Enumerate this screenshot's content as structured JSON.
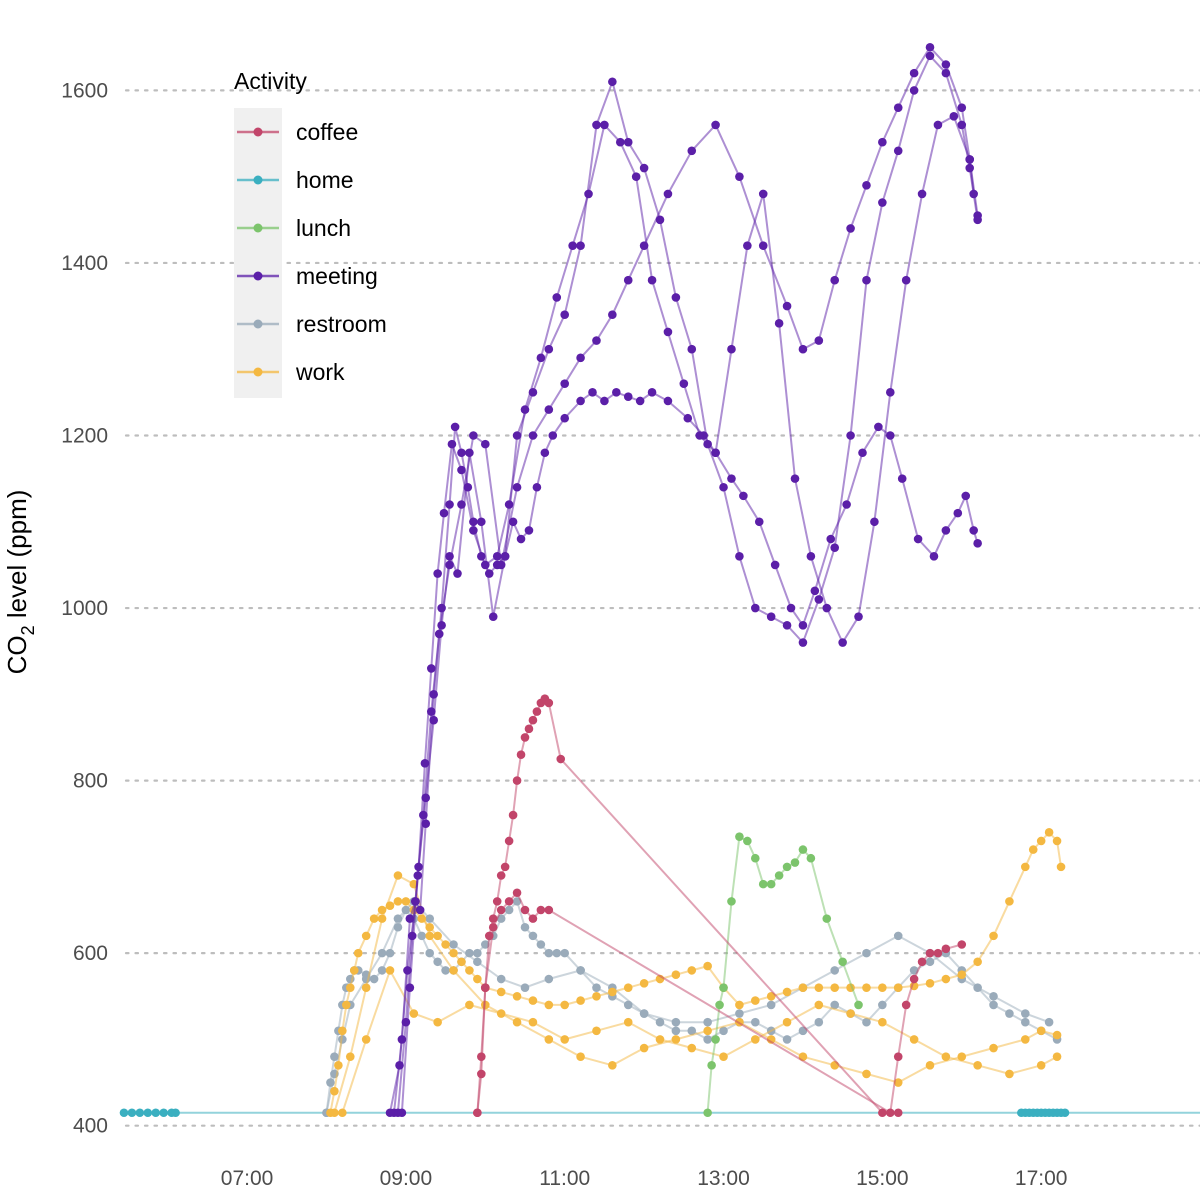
{
  "chart_data": {
    "type": "line",
    "title": "",
    "xlabel": "",
    "ylabel_main": "CO",
    "ylabel_sub": "2",
    "ylabel_rest": " level (ppm)",
    "ylim": [
      395,
      1670
    ],
    "xlim": [
      5.4,
      19.0
    ],
    "y_ticks": [
      400,
      600,
      800,
      1000,
      1200,
      1400,
      1600
    ],
    "x_ticks": [
      {
        "hour": 7,
        "label": "07:00"
      },
      {
        "hour": 9,
        "label": "09:00"
      },
      {
        "hour": 11,
        "label": "11:00"
      },
      {
        "hour": 13,
        "label": "13:00"
      },
      {
        "hour": 15,
        "label": "15:00"
      },
      {
        "hour": 17,
        "label": "17:00"
      }
    ],
    "grid": "horizontal-dotted",
    "legend": {
      "title": "Activity",
      "placement": "top-left",
      "entries": [
        "coffee",
        "home",
        "lunch",
        "meeting",
        "restroom",
        "work"
      ]
    },
    "colors": {
      "coffee": "#c2456a",
      "home": "#3aafc0",
      "lunch": "#7cc46c",
      "meeting": "#5b1fa8",
      "restroom": "#9aabba",
      "work": "#f4b841"
    },
    "series": [
      {
        "name": "home",
        "color": "#3aafc0",
        "x": [
          5.45,
          5.55,
          5.65,
          5.75,
          5.85,
          5.95,
          6.05,
          6.1,
          16.75,
          16.8,
          16.85,
          16.9,
          16.95,
          17.0,
          17.05,
          17.1,
          17.15,
          17.2,
          17.25,
          17.3,
          19.0
        ],
        "y": [
          415,
          415,
          415,
          415,
          415,
          415,
          415,
          415,
          415,
          415,
          415,
          415,
          415,
          415,
          415,
          415,
          415,
          415,
          415,
          415,
          415
        ]
      },
      {
        "name": "meeting",
        "color": "#5b1fa8",
        "x": [
          8.85,
          8.95,
          9.05,
          9.12,
          9.18,
          9.25,
          9.35,
          9.45,
          9.55,
          9.62,
          9.7,
          9.78,
          9.85,
          9.95,
          10.05,
          10.15,
          10.25,
          10.35,
          10.45,
          10.55,
          10.65,
          10.75,
          10.85,
          11.0,
          11.2,
          11.35,
          11.5,
          11.65,
          11.8,
          11.95,
          12.1,
          12.3,
          12.55,
          12.75,
          12.9,
          13.1,
          13.25,
          13.45,
          13.65,
          13.85,
          14.0,
          14.15,
          14.35,
          14.55,
          14.75,
          14.95,
          15.1,
          15.25,
          15.45,
          15.65,
          15.8,
          15.95,
          16.05,
          16.15,
          16.2
        ],
        "y": [
          415,
          500,
          640,
          660,
          650,
          750,
          900,
          1000,
          1120,
          1210,
          1180,
          1140,
          1100,
          1060,
          1040,
          1050,
          1060,
          1100,
          1080,
          1090,
          1140,
          1180,
          1200,
          1220,
          1240,
          1250,
          1240,
          1250,
          1245,
          1240,
          1250,
          1240,
          1220,
          1200,
          1180,
          1150,
          1130,
          1100,
          1050,
          1000,
          980,
          1020,
          1080,
          1120,
          1180,
          1210,
          1200,
          1150,
          1080,
          1060,
          1090,
          1110,
          1130,
          1090,
          1075
        ]
      },
      {
        "name": "meeting",
        "color": "#5b1fa8",
        "x": [
          8.9,
          9.0,
          9.08,
          9.16,
          9.24,
          9.32,
          9.4,
          9.48,
          9.58,
          9.7,
          9.85,
          10.0,
          10.15,
          10.3,
          10.5,
          10.7,
          10.9,
          11.1,
          11.3,
          11.5,
          11.7,
          11.9,
          12.1,
          12.3,
          12.5,
          12.7,
          12.9,
          13.1,
          13.3,
          13.5,
          13.7,
          13.9,
          14.1,
          14.3,
          14.5,
          14.7,
          14.9,
          15.1,
          15.3,
          15.5,
          15.7,
          15.9,
          16.1,
          16.2
        ],
        "y": [
          415,
          520,
          620,
          700,
          820,
          930,
          1040,
          1110,
          1190,
          1160,
          1090,
          1050,
          1060,
          1120,
          1230,
          1290,
          1360,
          1420,
          1480,
          1560,
          1540,
          1500,
          1380,
          1320,
          1260,
          1200,
          1180,
          1300,
          1420,
          1480,
          1330,
          1150,
          1060,
          1000,
          960,
          990,
          1100,
          1250,
          1380,
          1480,
          1560,
          1570,
          1520,
          1455
        ]
      },
      {
        "name": "meeting",
        "color": "#5b1fa8",
        "x": [
          8.95,
          9.05,
          9.15,
          9.25,
          9.35,
          9.45,
          9.55,
          9.65,
          9.8,
          9.95,
          10.1,
          10.25,
          10.4,
          10.6,
          10.8,
          11.0,
          11.2,
          11.4,
          11.6,
          11.8,
          12.0,
          12.2,
          12.4,
          12.6,
          12.8,
          13.0,
          13.2,
          13.4,
          13.6,
          13.8,
          14.0,
          14.2,
          14.4,
          14.6,
          14.8,
          15.0,
          15.2,
          15.4,
          15.6,
          15.8,
          16.0,
          16.1,
          16.2
        ],
        "y": [
          415,
          560,
          690,
          780,
          870,
          980,
          1060,
          1040,
          1180,
          1100,
          990,
          1060,
          1200,
          1250,
          1300,
          1340,
          1420,
          1560,
          1610,
          1540,
          1510,
          1450,
          1360,
          1300,
          1190,
          1140,
          1060,
          1000,
          990,
          980,
          960,
          1010,
          1070,
          1200,
          1380,
          1470,
          1530,
          1600,
          1640,
          1620,
          1560,
          1510,
          1450
        ]
      },
      {
        "name": "meeting",
        "color": "#5b1fa8",
        "x": [
          8.8,
          8.92,
          9.02,
          9.12,
          9.22,
          9.32,
          9.42,
          9.55,
          9.7,
          9.85,
          10.0,
          10.2,
          10.4,
          10.6,
          10.8,
          11.0,
          11.2,
          11.4,
          11.6,
          11.8,
          12.0,
          12.3,
          12.6,
          12.9,
          13.2,
          13.5,
          13.8,
          14.0,
          14.2,
          14.4,
          14.6,
          14.8,
          15.0,
          15.2,
          15.4,
          15.6,
          15.8,
          16.0,
          16.1,
          16.15
        ],
        "y": [
          415,
          470,
          580,
          660,
          760,
          880,
          970,
          1050,
          1120,
          1200,
          1190,
          1050,
          1140,
          1200,
          1230,
          1260,
          1290,
          1310,
          1340,
          1380,
          1420,
          1480,
          1530,
          1560,
          1500,
          1420,
          1350,
          1300,
          1310,
          1380,
          1440,
          1490,
          1540,
          1580,
          1620,
          1650,
          1630,
          1580,
          1520,
          1480
        ]
      },
      {
        "name": "coffee",
        "color": "#c2456a",
        "x": [
          9.9,
          9.95,
          10.0,
          10.05,
          10.1,
          10.15,
          10.2,
          10.25,
          10.3,
          10.35,
          10.4,
          10.45,
          10.5,
          10.55,
          10.6,
          10.65,
          10.7,
          10.75,
          10.8,
          10.95,
          15.0,
          15.2
        ],
        "y": [
          415,
          460,
          560,
          620,
          640,
          660,
          690,
          700,
          730,
          760,
          800,
          830,
          850,
          860,
          870,
          880,
          890,
          895,
          890,
          825,
          415,
          415
        ]
      },
      {
        "name": "coffee",
        "color": "#c2456a",
        "x": [
          9.9,
          9.95,
          10.0,
          10.1,
          10.2,
          10.3,
          10.4,
          10.5,
          10.6,
          10.7,
          10.8,
          15.1,
          15.2,
          15.3,
          15.4,
          15.5,
          15.6,
          15.7,
          15.8,
          16.0
        ],
        "y": [
          415,
          480,
          560,
          630,
          650,
          660,
          670,
          650,
          640,
          650,
          650,
          415,
          480,
          540,
          570,
          590,
          600,
          600,
          605,
          610
        ]
      },
      {
        "name": "lunch",
        "color": "#7cc46c",
        "x": [
          12.8,
          12.85,
          12.9,
          12.95,
          13.0,
          13.1,
          13.2,
          13.3,
          13.4,
          13.5,
          13.6,
          13.7,
          13.8,
          13.9,
          14.0,
          14.1,
          14.3,
          14.5,
          14.7
        ],
        "y": [
          415,
          470,
          500,
          540,
          560,
          660,
          735,
          730,
          710,
          680,
          680,
          690,
          700,
          705,
          720,
          710,
          640,
          590,
          540
        ]
      },
      {
        "name": "restroom",
        "color": "#9aabba",
        "x": [
          8.0,
          8.05,
          8.1,
          8.15,
          8.2,
          8.25,
          8.3,
          8.35,
          8.4,
          8.5,
          8.6,
          8.7,
          8.8,
          8.9,
          9.0,
          9.1,
          9.2,
          9.3,
          9.4,
          9.5,
          9.6,
          9.7,
          9.8,
          9.9,
          10.0,
          10.1,
          10.2,
          10.3,
          10.4,
          10.5,
          10.6,
          10.7,
          10.8,
          10.9,
          11.0,
          11.2,
          11.4,
          11.6,
          11.8,
          12.0,
          12.2,
          12.4,
          12.6,
          12.8,
          13.0,
          13.2,
          13.4,
          13.6,
          13.8,
          14.0,
          14.2,
          14.4,
          14.6,
          14.8,
          15.0,
          15.2,
          15.4,
          15.6,
          15.8,
          16.0,
          16.2,
          16.4,
          16.6,
          16.8,
          17.0,
          17.2
        ],
        "y": [
          415,
          450,
          480,
          510,
          540,
          560,
          570,
          580,
          580,
          575,
          570,
          580,
          600,
          630,
          650,
          640,
          620,
          600,
          590,
          580,
          580,
          590,
          600,
          600,
          610,
          620,
          640,
          650,
          660,
          630,
          620,
          610,
          600,
          600,
          600,
          580,
          560,
          550,
          540,
          530,
          520,
          510,
          510,
          500,
          510,
          520,
          520,
          510,
          500,
          510,
          520,
          540,
          530,
          520,
          540,
          560,
          580,
          590,
          600,
          580,
          560,
          540,
          530,
          520,
          510,
          500
        ]
      },
      {
        "name": "restroom",
        "color": "#9aabba",
        "x": [
          8.0,
          8.1,
          8.2,
          8.3,
          8.5,
          8.7,
          8.9,
          9.1,
          9.3,
          9.6,
          9.9,
          10.2,
          10.5,
          10.8,
          11.2,
          11.6,
          12.0,
          12.4,
          12.8,
          13.2,
          13.6,
          14.0,
          14.4,
          14.8,
          15.2,
          15.6,
          16.0,
          16.4,
          16.8,
          17.1
        ],
        "y": [
          415,
          460,
          500,
          540,
          570,
          600,
          640,
          660,
          640,
          610,
          590,
          570,
          560,
          570,
          580,
          560,
          530,
          520,
          520,
          530,
          540,
          560,
          580,
          600,
          620,
          600,
          570,
          550,
          530,
          520
        ]
      },
      {
        "name": "work",
        "color": "#f4b841",
        "x": [
          8.05,
          8.1,
          8.15,
          8.2,
          8.25,
          8.3,
          8.35,
          8.4,
          8.5,
          8.6,
          8.7,
          8.8,
          8.9,
          9.0,
          9.1,
          9.2,
          9.3,
          9.4,
          9.5,
          9.6,
          9.7,
          9.8,
          9.9,
          10.0,
          10.2,
          10.4,
          10.6,
          10.8,
          11.0,
          11.2,
          11.4,
          11.6,
          11.8,
          12.0,
          12.2,
          12.4,
          12.6,
          12.8,
          13.0,
          13.2,
          13.4,
          13.6,
          13.8,
          14.0,
          14.2,
          14.4,
          14.6,
          14.8,
          15.0,
          15.2,
          15.4,
          15.6,
          15.8,
          16.0,
          16.2,
          16.4,
          16.6,
          16.8,
          16.9,
          17.0,
          17.1,
          17.2,
          17.25
        ],
        "y": [
          415,
          440,
          470,
          510,
          540,
          560,
          580,
          600,
          620,
          640,
          650,
          655,
          660,
          660,
          650,
          640,
          630,
          620,
          610,
          600,
          590,
          580,
          570,
          560,
          555,
          550,
          545,
          540,
          540,
          545,
          550,
          555,
          560,
          565,
          570,
          575,
          580,
          585,
          560,
          540,
          545,
          550,
          555,
          560,
          560,
          560,
          560,
          560,
          560,
          560,
          562,
          565,
          570,
          575,
          590,
          620,
          660,
          700,
          720,
          730,
          740,
          730,
          700
        ]
      },
      {
        "name": "work",
        "color": "#f4b841",
        "x": [
          8.1,
          8.3,
          8.5,
          8.7,
          8.9,
          9.1,
          9.3,
          9.6,
          10.0,
          10.4,
          10.8,
          11.2,
          11.6,
          12.0,
          12.4,
          12.8,
          13.2,
          13.6,
          14.0,
          14.4,
          14.8,
          15.2,
          15.6,
          16.0,
          16.4,
          16.8,
          17.0,
          17.2
        ],
        "y": [
          415,
          480,
          560,
          640,
          690,
          680,
          620,
          580,
          540,
          520,
          500,
          480,
          470,
          490,
          500,
          510,
          520,
          500,
          480,
          470,
          460,
          450,
          470,
          480,
          490,
          500,
          510,
          505
        ]
      },
      {
        "name": "work",
        "color": "#f4b841",
        "x": [
          8.2,
          8.5,
          8.8,
          9.1,
          9.4,
          9.8,
          10.2,
          10.6,
          11.0,
          11.4,
          11.8,
          12.2,
          12.6,
          13.0,
          13.4,
          13.8,
          14.2,
          14.6,
          15.0,
          15.4,
          15.8,
          16.2,
          16.6,
          17.0,
          17.2
        ],
        "y": [
          415,
          500,
          580,
          530,
          520,
          540,
          530,
          520,
          500,
          510,
          520,
          500,
          490,
          480,
          500,
          520,
          540,
          530,
          520,
          500,
          480,
          470,
          460,
          470,
          480
        ]
      }
    ]
  }
}
